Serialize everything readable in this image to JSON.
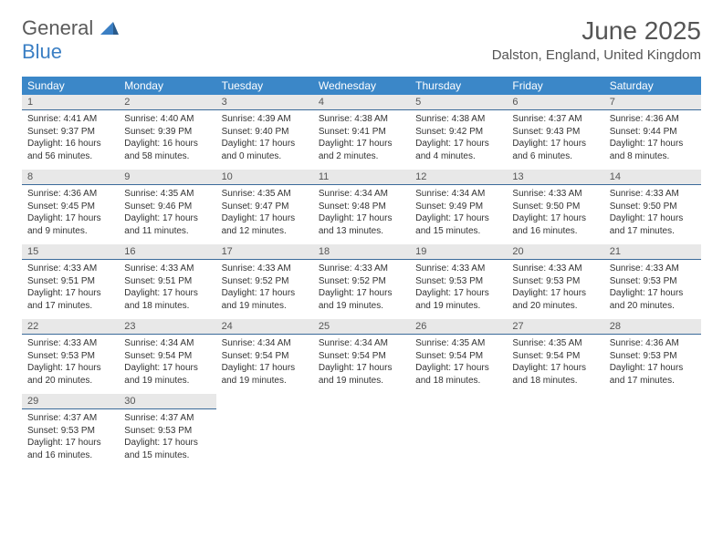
{
  "logo": {
    "line1": "General",
    "line2": "Blue"
  },
  "title": {
    "month": "June 2025",
    "location": "Dalston, England, United Kingdom"
  },
  "colors": {
    "header_bg": "#3b87c8",
    "header_text": "#ffffff",
    "daynum_bg": "#e8e8e8",
    "daynum_border": "#3b6a9a",
    "body_text": "#333333",
    "title_text": "#555555",
    "logo_gray": "#5a5a5a",
    "logo_blue": "#3b7fc4"
  },
  "weekdays": [
    "Sunday",
    "Monday",
    "Tuesday",
    "Wednesday",
    "Thursday",
    "Friday",
    "Saturday"
  ],
  "days": [
    {
      "n": "1",
      "sr": "4:41 AM",
      "ss": "9:37 PM",
      "dl": "16 hours and 56 minutes."
    },
    {
      "n": "2",
      "sr": "4:40 AM",
      "ss": "9:39 PM",
      "dl": "16 hours and 58 minutes."
    },
    {
      "n": "3",
      "sr": "4:39 AM",
      "ss": "9:40 PM",
      "dl": "17 hours and 0 minutes."
    },
    {
      "n": "4",
      "sr": "4:38 AM",
      "ss": "9:41 PM",
      "dl": "17 hours and 2 minutes."
    },
    {
      "n": "5",
      "sr": "4:38 AM",
      "ss": "9:42 PM",
      "dl": "17 hours and 4 minutes."
    },
    {
      "n": "6",
      "sr": "4:37 AM",
      "ss": "9:43 PM",
      "dl": "17 hours and 6 minutes."
    },
    {
      "n": "7",
      "sr": "4:36 AM",
      "ss": "9:44 PM",
      "dl": "17 hours and 8 minutes."
    },
    {
      "n": "8",
      "sr": "4:36 AM",
      "ss": "9:45 PM",
      "dl": "17 hours and 9 minutes."
    },
    {
      "n": "9",
      "sr": "4:35 AM",
      "ss": "9:46 PM",
      "dl": "17 hours and 11 minutes."
    },
    {
      "n": "10",
      "sr": "4:35 AM",
      "ss": "9:47 PM",
      "dl": "17 hours and 12 minutes."
    },
    {
      "n": "11",
      "sr": "4:34 AM",
      "ss": "9:48 PM",
      "dl": "17 hours and 13 minutes."
    },
    {
      "n": "12",
      "sr": "4:34 AM",
      "ss": "9:49 PM",
      "dl": "17 hours and 15 minutes."
    },
    {
      "n": "13",
      "sr": "4:33 AM",
      "ss": "9:50 PM",
      "dl": "17 hours and 16 minutes."
    },
    {
      "n": "14",
      "sr": "4:33 AM",
      "ss": "9:50 PM",
      "dl": "17 hours and 17 minutes."
    },
    {
      "n": "15",
      "sr": "4:33 AM",
      "ss": "9:51 PM",
      "dl": "17 hours and 17 minutes."
    },
    {
      "n": "16",
      "sr": "4:33 AM",
      "ss": "9:51 PM",
      "dl": "17 hours and 18 minutes."
    },
    {
      "n": "17",
      "sr": "4:33 AM",
      "ss": "9:52 PM",
      "dl": "17 hours and 19 minutes."
    },
    {
      "n": "18",
      "sr": "4:33 AM",
      "ss": "9:52 PM",
      "dl": "17 hours and 19 minutes."
    },
    {
      "n": "19",
      "sr": "4:33 AM",
      "ss": "9:53 PM",
      "dl": "17 hours and 19 minutes."
    },
    {
      "n": "20",
      "sr": "4:33 AM",
      "ss": "9:53 PM",
      "dl": "17 hours and 20 minutes."
    },
    {
      "n": "21",
      "sr": "4:33 AM",
      "ss": "9:53 PM",
      "dl": "17 hours and 20 minutes."
    },
    {
      "n": "22",
      "sr": "4:33 AM",
      "ss": "9:53 PM",
      "dl": "17 hours and 20 minutes."
    },
    {
      "n": "23",
      "sr": "4:34 AM",
      "ss": "9:54 PM",
      "dl": "17 hours and 19 minutes."
    },
    {
      "n": "24",
      "sr": "4:34 AM",
      "ss": "9:54 PM",
      "dl": "17 hours and 19 minutes."
    },
    {
      "n": "25",
      "sr": "4:34 AM",
      "ss": "9:54 PM",
      "dl": "17 hours and 19 minutes."
    },
    {
      "n": "26",
      "sr": "4:35 AM",
      "ss": "9:54 PM",
      "dl": "17 hours and 18 minutes."
    },
    {
      "n": "27",
      "sr": "4:35 AM",
      "ss": "9:54 PM",
      "dl": "17 hours and 18 minutes."
    },
    {
      "n": "28",
      "sr": "4:36 AM",
      "ss": "9:53 PM",
      "dl": "17 hours and 17 minutes."
    },
    {
      "n": "29",
      "sr": "4:37 AM",
      "ss": "9:53 PM",
      "dl": "17 hours and 16 minutes."
    },
    {
      "n": "30",
      "sr": "4:37 AM",
      "ss": "9:53 PM",
      "dl": "17 hours and 15 minutes."
    }
  ],
  "labels": {
    "sunrise": "Sunrise:",
    "sunset": "Sunset:",
    "daylight": "Daylight:"
  }
}
